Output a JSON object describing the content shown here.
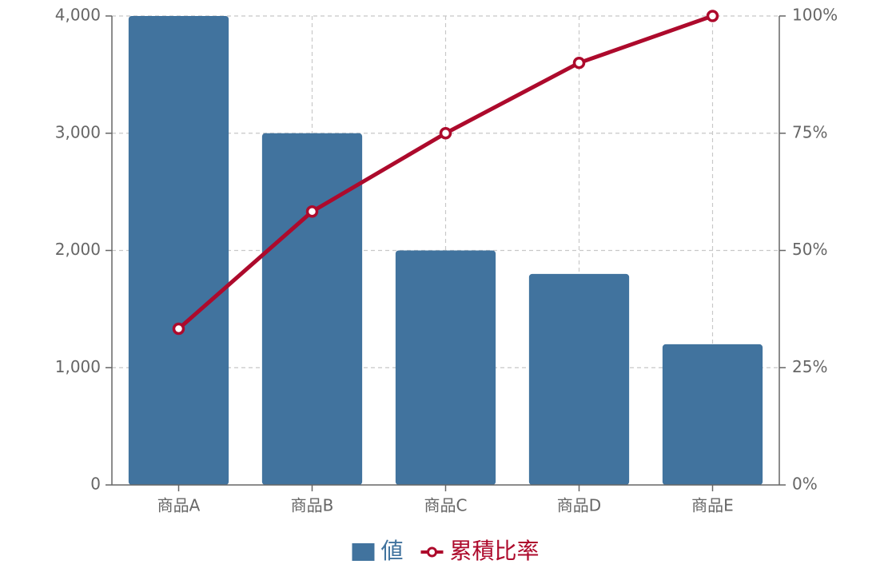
{
  "chart_data": {
    "type": "bar",
    "categories": [
      "商品A",
      "商品B",
      "商品C",
      "商品D",
      "商品E"
    ],
    "series": [
      {
        "name": "値",
        "type": "bar",
        "color": "#41739e",
        "values": [
          4000,
          3000,
          2000,
          1800,
          1200
        ]
      },
      {
        "name": "累積比率",
        "type": "line",
        "axis": "y2",
        "color": "#ad0a2c",
        "values": [
          33.3,
          58.3,
          75,
          90,
          100
        ]
      }
    ],
    "ylim": [
      0,
      4000
    ],
    "yticks": [
      0,
      {
        "value": 1000,
        "label": "1,000"
      },
      {
        "value": 2000,
        "label": "2,000"
      },
      {
        "value": 3000,
        "label": "3,000"
      },
      {
        "value": 4000,
        "label": "4,000"
      }
    ],
    "y2lim": [
      0,
      100
    ],
    "y2ticks": [
      {
        "value": 0,
        "label": "0%"
      },
      {
        "value": 25,
        "label": "25%"
      },
      {
        "value": 50,
        "label": "50%"
      },
      {
        "value": 75,
        "label": "75%"
      },
      {
        "value": 100,
        "label": "100%"
      }
    ],
    "grid": true
  }
}
